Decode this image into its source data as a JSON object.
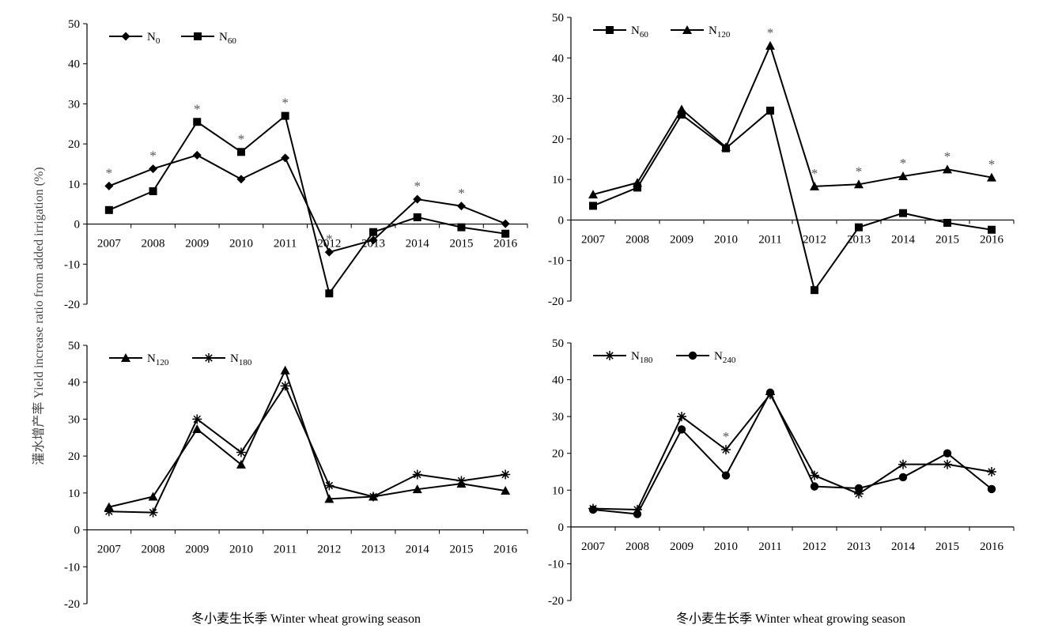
{
  "figure": {
    "ylabel": "灌水增产率 Yield increase ratio from added irrigation (%)",
    "xlabel": "冬小麦生长季 Winter wheat growing season"
  },
  "chart_data": [
    {
      "type": "line",
      "x": [
        "2007",
        "2008",
        "2009",
        "2010",
        "2011",
        "2012",
        "2013",
        "2014",
        "2015",
        "2016"
      ],
      "ylim": [
        -20,
        50
      ],
      "yticks": [
        -20,
        -10,
        0,
        10,
        20,
        30,
        40,
        50
      ],
      "legend_position": "top-left",
      "grid": false,
      "series": [
        {
          "name": "N0",
          "name_base": "N",
          "name_sub": "0",
          "marker": "diamond",
          "values": [
            9.5,
            13.8,
            17.2,
            11.2,
            16.5,
            -7.0,
            -4.0,
            6.2,
            4.5,
            0.1
          ]
        },
        {
          "name": "N60",
          "name_base": "N",
          "name_sub": "60",
          "marker": "square",
          "values": [
            3.5,
            8.2,
            25.5,
            18.0,
            27.0,
            -17.3,
            -2.0,
            1.7,
            -0.8,
            -2.4
          ]
        }
      ],
      "annotations": [
        {
          "x": "2007",
          "y": 9.5,
          "text": "*"
        },
        {
          "x": "2008",
          "y": 13.8,
          "text": "*"
        },
        {
          "x": "2009",
          "y": 25.5,
          "text": "*"
        },
        {
          "x": "2010",
          "y": 18.0,
          "text": "*"
        },
        {
          "x": "2011",
          "y": 27.0,
          "text": "*"
        },
        {
          "x": "2012",
          "y": -7.0,
          "text": "*"
        },
        {
          "x": "2014",
          "y": 6.2,
          "text": "*"
        },
        {
          "x": "2015",
          "y": 4.5,
          "text": "*"
        }
      ]
    },
    {
      "type": "line",
      "x": [
        "2007",
        "2008",
        "2009",
        "2010",
        "2011",
        "2012",
        "2013",
        "2014",
        "2015",
        "2016"
      ],
      "ylim": [
        -20,
        50
      ],
      "yticks": [
        -20,
        -10,
        0,
        10,
        20,
        30,
        40,
        50
      ],
      "legend_position": "top-left",
      "grid": false,
      "series": [
        {
          "name": "N60",
          "name_base": "N",
          "name_sub": "60",
          "marker": "square",
          "values": [
            3.5,
            8.0,
            26.0,
            17.7,
            27.0,
            -17.3,
            -1.8,
            1.7,
            -0.7,
            -2.4
          ]
        },
        {
          "name": "N120",
          "name_base": "N",
          "name_sub": "120",
          "marker": "triangle",
          "values": [
            6.3,
            9.2,
            27.3,
            18.0,
            43.0,
            8.3,
            8.8,
            10.8,
            12.5,
            10.5
          ]
        }
      ],
      "annotations": [
        {
          "x": "2011",
          "y": 43.0,
          "text": "*"
        },
        {
          "x": "2012",
          "y": 8.3,
          "text": "*"
        },
        {
          "x": "2013",
          "y": 8.8,
          "text": "*"
        },
        {
          "x": "2014",
          "y": 10.8,
          "text": "*"
        },
        {
          "x": "2015",
          "y": 12.5,
          "text": "*"
        },
        {
          "x": "2016",
          "y": 10.5,
          "text": "*"
        }
      ]
    },
    {
      "type": "line",
      "x": [
        "2007",
        "2008",
        "2009",
        "2010",
        "2011",
        "2012",
        "2013",
        "2014",
        "2015",
        "2016"
      ],
      "ylim": [
        -20,
        50
      ],
      "yticks": [
        -20,
        -10,
        0,
        10,
        20,
        30,
        40,
        50
      ],
      "legend_position": "top-left",
      "grid": false,
      "series": [
        {
          "name": "N120",
          "name_base": "N",
          "name_sub": "120",
          "marker": "triangle",
          "values": [
            6.2,
            9.0,
            27.3,
            17.7,
            43.2,
            8.4,
            9.0,
            11.0,
            12.5,
            10.6
          ]
        },
        {
          "name": "N180",
          "name_base": "N",
          "name_sub": "180",
          "marker": "star",
          "values": [
            5.0,
            4.7,
            30.0,
            21.0,
            39.0,
            12.0,
            9.0,
            15.0,
            13.3,
            15.0
          ]
        }
      ],
      "annotations": []
    },
    {
      "type": "line",
      "x": [
        "2007",
        "2008",
        "2009",
        "2010",
        "2011",
        "2012",
        "2013",
        "2014",
        "2015",
        "2016"
      ],
      "ylim": [
        -20,
        50
      ],
      "yticks": [
        -20,
        -10,
        0,
        10,
        20,
        30,
        40,
        50
      ],
      "legend_position": "top-left",
      "grid": false,
      "series": [
        {
          "name": "N180",
          "name_base": "N",
          "name_sub": "180",
          "marker": "star",
          "values": [
            5.0,
            4.7,
            30.0,
            21.0,
            36.0,
            14.0,
            9.0,
            17.0,
            17.0,
            15.0
          ]
        },
        {
          "name": "N240",
          "name_base": "N",
          "name_sub": "240",
          "marker": "circle",
          "values": [
            4.7,
            3.5,
            26.5,
            14.0,
            36.5,
            11.0,
            10.5,
            13.5,
            20.0,
            10.3
          ]
        }
      ],
      "annotations": [
        {
          "x": "2010",
          "y": 21.0,
          "text": "*"
        }
      ]
    }
  ]
}
